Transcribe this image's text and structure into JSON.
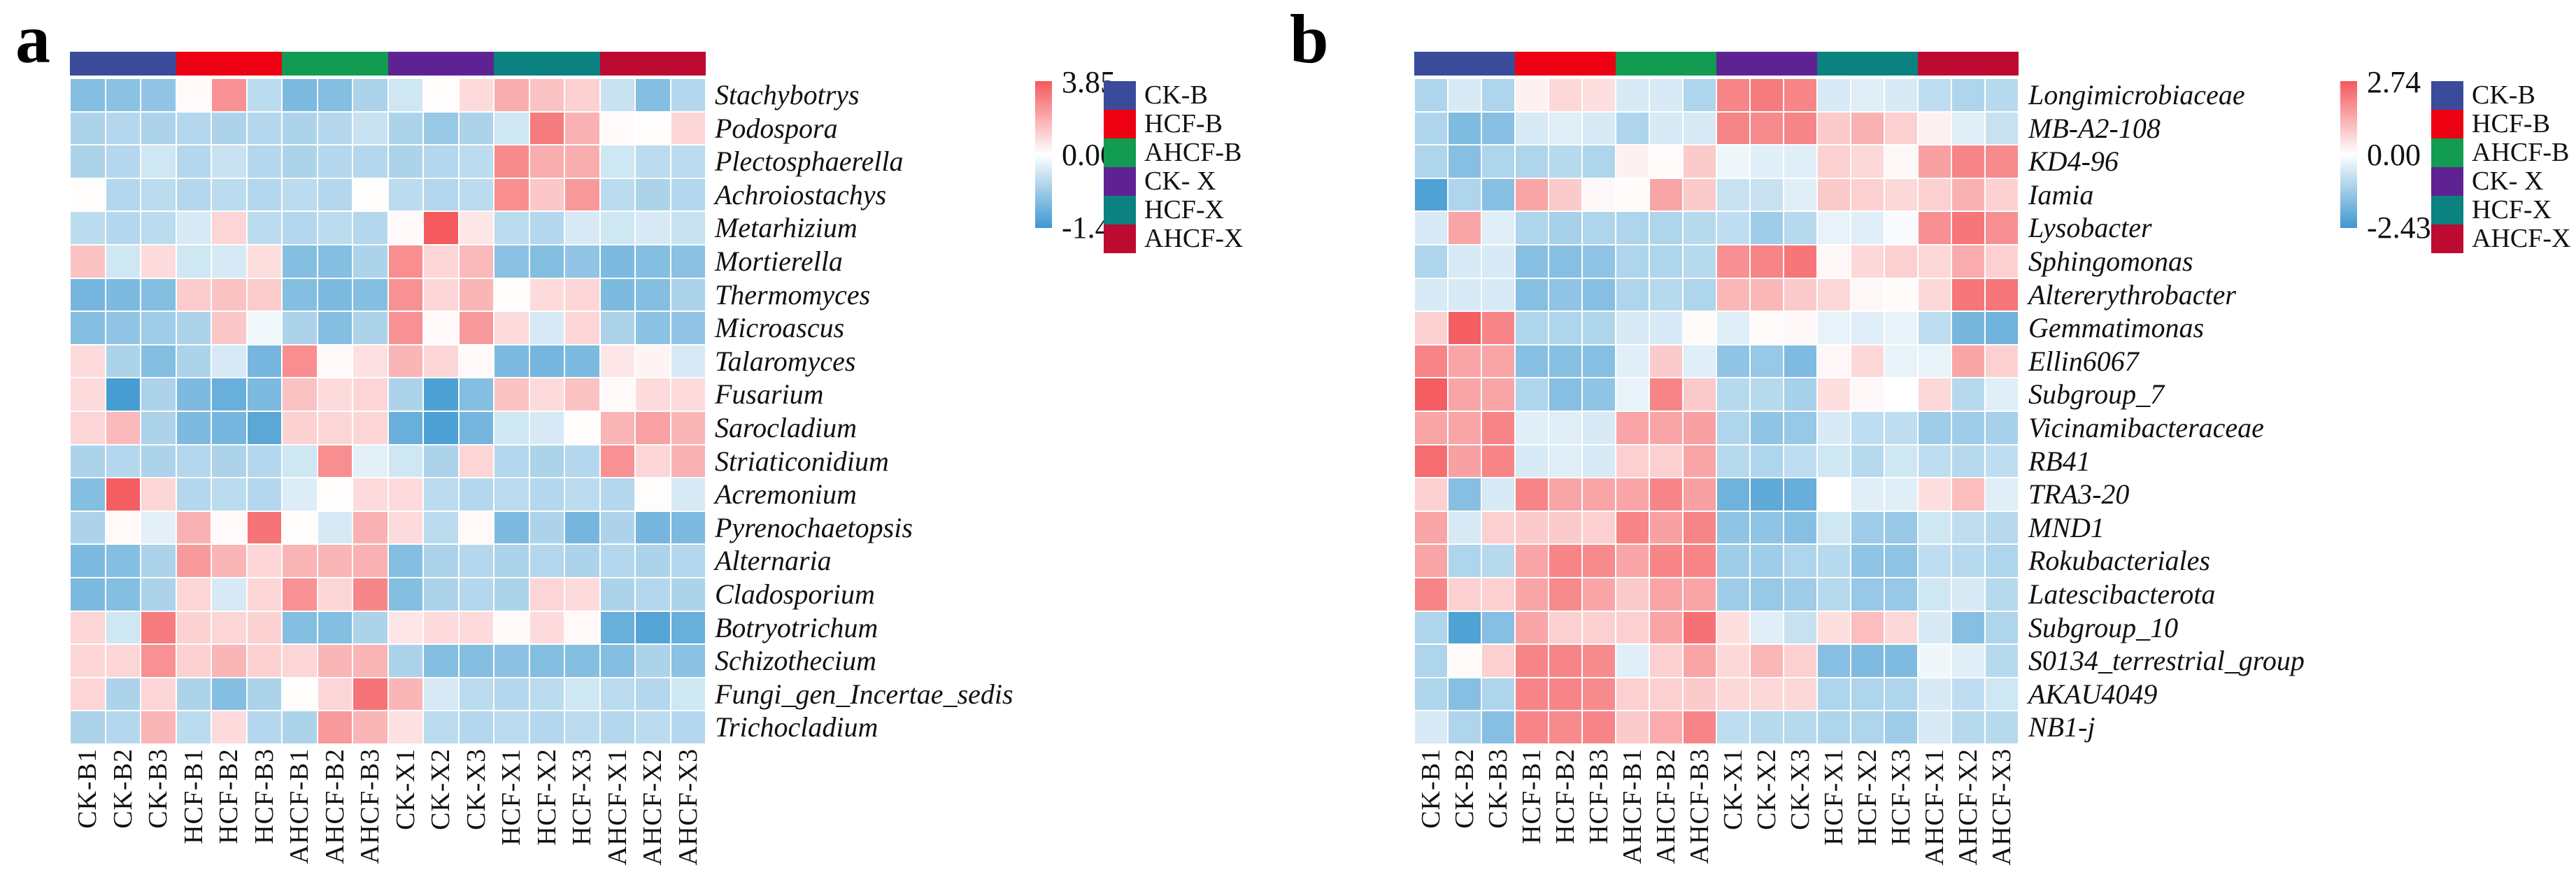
{
  "chart_data": [
    {
      "type": "heatmap",
      "panel_label": "a",
      "columns": [
        "CK-B1",
        "CK-B2",
        "CK-B3",
        "HCF-B1",
        "HCF-B2",
        "HCF-B3",
        "AHCF-B1",
        "AHCF-B2",
        "AHCF-B3",
        "CK-X1",
        "CK-X2",
        "CK-X3",
        "HCF-X1",
        "HCF-X2",
        "HCF-X3",
        "AHCF-X1",
        "AHCF-X2",
        "AHCF-X3"
      ],
      "rows": [
        "Stachybotrys",
        "Podospora",
        "Plectosphaerella",
        "Achroiostachys",
        "Metarhizium",
        "Mortierella",
        "Thermomyces",
        "Microascus",
        "Talaromyces",
        "Fusarium",
        "Sarocladium",
        "Striaticonidium",
        "Acremonium",
        "Pyrenochaetopsis",
        "Alternaria",
        "Cladosporium",
        "Botryotrichum",
        "Schizothecium",
        "Fungi_gen_Incertae_sedis",
        "Trichocladium"
      ],
      "values": [
        [
          -0.9,
          -0.85,
          -0.8,
          0.05,
          2.2,
          -0.5,
          -0.95,
          -0.9,
          -0.6,
          -0.35,
          0.02,
          0.5,
          1.5,
          1.0,
          0.7,
          -0.4,
          -0.9,
          -0.55
        ],
        [
          -0.6,
          -0.55,
          -0.6,
          -0.55,
          -0.6,
          -0.55,
          -0.6,
          -0.55,
          -0.4,
          -0.6,
          -0.75,
          -0.6,
          -0.35,
          2.8,
          1.4,
          0.05,
          0.02,
          0.6
        ],
        [
          -0.6,
          -0.55,
          -0.35,
          -0.55,
          -0.4,
          -0.55,
          -0.6,
          -0.55,
          -0.55,
          -0.6,
          -0.55,
          -0.5,
          2.4,
          1.5,
          1.5,
          -0.35,
          -0.5,
          -0.5
        ],
        [
          0.02,
          -0.55,
          -0.5,
          -0.55,
          -0.5,
          -0.55,
          -0.5,
          -0.55,
          0.02,
          -0.5,
          -0.55,
          -0.5,
          2.3,
          0.9,
          2.0,
          -0.5,
          -0.6,
          -0.55
        ],
        [
          -0.5,
          -0.55,
          -0.5,
          -0.3,
          0.6,
          -0.5,
          -0.55,
          -0.5,
          -0.55,
          0.05,
          3.8,
          0.3,
          -0.5,
          -0.55,
          -0.3,
          -0.35,
          -0.3,
          -0.4
        ],
        [
          1.0,
          -0.35,
          0.5,
          -0.35,
          -0.3,
          0.45,
          -0.9,
          -0.9,
          -0.6,
          2.3,
          0.6,
          1.2,
          -0.85,
          -0.9,
          -0.8,
          -0.95,
          -0.9,
          -0.85
        ],
        [
          -1.0,
          -0.95,
          -0.9,
          0.8,
          1.0,
          0.8,
          -0.9,
          -0.95,
          -0.9,
          2.2,
          0.6,
          1.3,
          0.02,
          0.5,
          0.6,
          -0.95,
          -0.9,
          -0.6
        ],
        [
          -0.9,
          -0.8,
          -0.7,
          -0.6,
          0.9,
          -0.1,
          -0.6,
          -0.9,
          -0.6,
          2.2,
          0.05,
          2.0,
          0.5,
          -0.3,
          0.6,
          -0.6,
          -0.85,
          -0.8
        ],
        [
          0.5,
          -0.6,
          -0.9,
          -0.6,
          -0.3,
          -1.0,
          2.3,
          0.05,
          0.4,
          1.3,
          0.6,
          0.05,
          -0.95,
          -1.0,
          -0.95,
          0.3,
          0.1,
          -0.3
        ],
        [
          0.5,
          -1.35,
          -0.6,
          -0.95,
          -1.1,
          -0.95,
          1.0,
          0.5,
          0.6,
          -0.6,
          -1.3,
          -0.9,
          1.0,
          0.5,
          1.0,
          0.05,
          0.5,
          0.5
        ],
        [
          0.6,
          1.2,
          -0.6,
          -0.95,
          -1.0,
          -1.2,
          0.7,
          0.6,
          0.6,
          -1.1,
          -1.3,
          -1.0,
          -0.35,
          -0.3,
          0.02,
          1.3,
          1.8,
          1.3
        ],
        [
          -0.6,
          -0.55,
          -0.6,
          -0.55,
          -0.6,
          -0.55,
          -0.35,
          2.3,
          -0.2,
          -0.35,
          -0.6,
          0.6,
          -0.55,
          -0.6,
          -0.55,
          2.2,
          0.6,
          1.4
        ],
        [
          -0.9,
          3.7,
          0.6,
          -0.55,
          -0.5,
          -0.55,
          -0.25,
          0.02,
          0.5,
          0.5,
          -0.5,
          -0.55,
          -0.5,
          -0.55,
          -0.5,
          -0.55,
          0.02,
          -0.3
        ],
        [
          -0.6,
          0.05,
          -0.2,
          1.4,
          0.05,
          3.0,
          0.02,
          -0.3,
          1.4,
          0.5,
          -0.5,
          0.05,
          -0.95,
          -0.6,
          -1.0,
          -0.6,
          -1.0,
          -0.95
        ],
        [
          -0.95,
          -0.9,
          -0.6,
          2.0,
          1.3,
          0.6,
          1.3,
          1.3,
          1.4,
          -0.9,
          -0.6,
          -0.55,
          -0.6,
          -0.55,
          -0.6,
          -0.55,
          -0.6,
          -0.55
        ],
        [
          -0.95,
          -0.9,
          -0.6,
          0.6,
          -0.3,
          0.6,
          2.2,
          0.6,
          2.5,
          -0.9,
          -0.6,
          -0.55,
          -0.6,
          0.6,
          0.5,
          -0.6,
          -0.55,
          -0.6
        ],
        [
          0.6,
          -0.35,
          2.8,
          0.7,
          0.6,
          0.7,
          -0.9,
          -0.9,
          -0.6,
          0.3,
          0.5,
          0.5,
          0.05,
          0.5,
          0.05,
          -1.1,
          -1.25,
          -1.1
        ],
        [
          0.6,
          0.6,
          2.2,
          0.7,
          1.3,
          0.7,
          0.6,
          1.3,
          1.3,
          -0.6,
          -0.9,
          -0.9,
          -0.85,
          -0.9,
          -0.9,
          -0.9,
          -0.6,
          -0.85
        ],
        [
          0.6,
          -0.6,
          0.6,
          -0.6,
          -0.9,
          -0.6,
          0.02,
          0.6,
          3.0,
          1.3,
          -0.3,
          -0.5,
          -0.55,
          -0.5,
          -0.35,
          -0.5,
          -0.55,
          -0.35
        ],
        [
          -0.6,
          -0.55,
          1.3,
          -0.5,
          0.5,
          -0.55,
          -0.6,
          2.0,
          1.3,
          0.4,
          -0.5,
          -0.55,
          -0.5,
          -0.55,
          -0.5,
          -0.55,
          -0.5,
          -0.55
        ]
      ],
      "value_range": {
        "max": 3.85,
        "min": -1.42
      },
      "colorbar": {
        "ticks": [
          "3.85",
          "0.00",
          "-1.42"
        ]
      },
      "column_groups": [
        {
          "label": "CK-B",
          "color": "#3B4B9B",
          "span": 3
        },
        {
          "label": "HCF-B",
          "color": "#EC0011",
          "span": 3
        },
        {
          "label": "AHCF-B",
          "color": "#119C52",
          "span": 3
        },
        {
          "label": "CK- X",
          "color": "#5F2293",
          "span": 3
        },
        {
          "label": "HCF-X",
          "color": "#0B8180",
          "span": 3
        },
        {
          "label": "AHCF-X",
          "color": "#BD0A30",
          "span": 3
        }
      ],
      "heat_palette": {
        "positive": "#F4585C",
        "zero": "#FFFFFF",
        "negative": "#3D98D0"
      }
    },
    {
      "type": "heatmap",
      "panel_label": "b",
      "columns": [
        "CK-B1",
        "CK-B2",
        "CK-B3",
        "HCF-B1",
        "HCF-B2",
        "HCF-B3",
        "AHCF-B1",
        "AHCF-B2",
        "AHCF-B3",
        "CK-X1",
        "CK-X2",
        "CK-X3",
        "HCF-X1",
        "HCF-X2",
        "HCF-X3",
        "AHCF-X1",
        "AHCF-X2",
        "AHCF-X3"
      ],
      "rows": [
        "Longimicrobiaceae",
        "MB-A2-108",
        "KD4-96",
        "Iamia",
        "Lysobacter",
        "Sphingomonas",
        "Altererythrobacter",
        "Gemmatimonas",
        "Ellin6067",
        "Subgroup_7",
        "Vicinamibacteraceae",
        "RB41",
        "TRA3-20",
        "MND1",
        "Rokubacteriales",
        "Latescibacterota",
        "Subgroup_10",
        "S0134_terrestrial_group",
        "AKAU4049",
        "NB1-j"
      ],
      "values": [
        [
          -1.0,
          -0.5,
          -1.0,
          0.1,
          0.4,
          0.3,
          -0.5,
          -0.5,
          -1.0,
          1.8,
          2.0,
          1.8,
          -0.5,
          -0.4,
          -0.5,
          -0.8,
          -1.0,
          -0.9
        ],
        [
          -1.0,
          -1.6,
          -1.5,
          -0.5,
          -0.4,
          -0.5,
          -1.0,
          -0.5,
          -0.5,
          1.8,
          1.7,
          1.8,
          0.6,
          1.0,
          0.5,
          0.1,
          -0.4,
          -0.7
        ],
        [
          -1.0,
          -1.5,
          -1.0,
          -1.0,
          -0.9,
          -1.0,
          0.1,
          0.02,
          0.6,
          -0.2,
          -0.4,
          -0.4,
          0.5,
          0.4,
          0.05,
          1.3,
          1.8,
          1.7
        ],
        [
          -2.2,
          -1.0,
          -1.5,
          1.2,
          0.6,
          0.05,
          0.02,
          1.2,
          0.6,
          -0.7,
          -0.7,
          -0.4,
          0.6,
          0.5,
          0.4,
          0.5,
          1.0,
          0.5
        ],
        [
          -0.5,
          1.2,
          -0.4,
          -1.0,
          -1.1,
          -1.0,
          -1.0,
          -1.0,
          -0.9,
          -0.8,
          -1.2,
          -0.9,
          -0.3,
          -0.4,
          -0.1,
          1.6,
          2.1,
          1.6
        ],
        [
          -1.0,
          -0.5,
          -0.5,
          -1.5,
          -1.5,
          -1.4,
          -1.0,
          -1.0,
          -0.9,
          1.6,
          1.8,
          2.1,
          0.05,
          0.4,
          0.5,
          0.4,
          1.1,
          0.5
        ],
        [
          -0.5,
          -0.5,
          -0.5,
          -1.5,
          -1.4,
          -1.5,
          -1.0,
          -0.9,
          -1.0,
          0.9,
          0.9,
          0.6,
          0.4,
          0.05,
          0.02,
          0.4,
          2.1,
          2.1
        ],
        [
          0.5,
          2.6,
          1.8,
          -1.0,
          -1.0,
          -1.0,
          -0.5,
          -0.5,
          0.02,
          -0.4,
          0.02,
          0.05,
          -0.3,
          -0.4,
          -0.3,
          -0.8,
          -1.7,
          -1.8
        ],
        [
          1.8,
          1.2,
          1.2,
          -1.5,
          -1.5,
          -1.5,
          -0.4,
          0.6,
          -0.4,
          -1.4,
          -1.3,
          -1.6,
          0.05,
          0.4,
          -0.3,
          -0.3,
          1.2,
          0.5
        ],
        [
          2.6,
          1.2,
          1.2,
          -1.0,
          -1.5,
          -1.4,
          -0.3,
          1.8,
          0.6,
          -0.9,
          -0.9,
          -1.1,
          0.3,
          0.05,
          0.0,
          0.4,
          -0.9,
          -0.4
        ],
        [
          1.2,
          1.2,
          1.8,
          -0.4,
          -0.4,
          -0.5,
          1.2,
          1.2,
          1.3,
          -1.0,
          -1.4,
          -1.3,
          -0.5,
          -0.8,
          -0.8,
          -1.2,
          -1.2,
          -1.1
        ],
        [
          2.3,
          1.3,
          1.8,
          -0.5,
          -0.4,
          -0.5,
          0.5,
          0.5,
          1.2,
          -0.9,
          -1.0,
          -0.8,
          -0.6,
          -0.9,
          -0.6,
          -0.8,
          -0.9,
          -0.8
        ],
        [
          0.5,
          -1.5,
          -0.5,
          1.8,
          1.2,
          1.2,
          1.2,
          1.8,
          1.3,
          -1.8,
          -2.0,
          -1.9,
          0.0,
          -0.4,
          -0.4,
          0.3,
          0.8,
          -0.4
        ],
        [
          1.2,
          -0.5,
          0.5,
          0.6,
          0.6,
          0.5,
          1.8,
          1.3,
          1.8,
          -1.4,
          -1.4,
          -1.5,
          -0.6,
          -1.2,
          -1.3,
          -0.6,
          -0.8,
          -0.9
        ],
        [
          1.2,
          -1.0,
          -0.9,
          1.2,
          1.8,
          1.7,
          1.2,
          1.8,
          1.8,
          -1.2,
          -1.2,
          -1.0,
          -0.9,
          -1.4,
          -1.4,
          -0.8,
          -0.9,
          -1.0
        ],
        [
          1.8,
          0.5,
          0.5,
          1.2,
          1.7,
          1.2,
          0.6,
          1.2,
          1.2,
          -1.2,
          -1.3,
          -1.2,
          -0.9,
          -1.3,
          -1.3,
          -0.6,
          -0.5,
          -0.9
        ],
        [
          -1.0,
          -2.2,
          -1.5,
          1.2,
          0.5,
          0.5,
          0.5,
          1.2,
          2.2,
          0.3,
          -0.4,
          -0.7,
          0.3,
          0.8,
          0.4,
          -0.5,
          -1.5,
          -1.0
        ],
        [
          -1.0,
          0.02,
          0.5,
          1.8,
          1.8,
          1.7,
          -0.4,
          0.5,
          1.2,
          0.4,
          0.9,
          0.5,
          -1.5,
          -1.6,
          -1.6,
          -0.2,
          -0.4,
          -0.9
        ],
        [
          -1.0,
          -1.5,
          -1.0,
          1.8,
          1.8,
          1.7,
          0.5,
          0.5,
          0.6,
          0.4,
          0.4,
          0.4,
          -1.0,
          -1.0,
          -1.0,
          -0.5,
          -0.8,
          -0.6
        ],
        [
          -0.5,
          -1.0,
          -1.5,
          1.8,
          1.7,
          1.8,
          0.6,
          1.1,
          1.8,
          -0.8,
          -0.9,
          -0.9,
          -1.0,
          -1.0,
          -1.2,
          -0.5,
          -0.9,
          -0.9
        ]
      ],
      "value_range": {
        "max": 2.74,
        "min": -2.43
      },
      "colorbar": {
        "ticks": [
          "2.74",
          "0.00",
          "-2.43"
        ]
      },
      "column_groups": [
        {
          "label": "CK-B",
          "color": "#3B4B9B",
          "span": 3
        },
        {
          "label": "HCF-B",
          "color": "#EC0011",
          "span": 3
        },
        {
          "label": "AHCF-B",
          "color": "#119C52",
          "span": 3
        },
        {
          "label": "CK- X",
          "color": "#5F2293",
          "span": 3
        },
        {
          "label": "HCF-X",
          "color": "#0B8180",
          "span": 3
        },
        {
          "label": "AHCF-X",
          "color": "#BD0A30",
          "span": 3
        }
      ],
      "heat_palette": {
        "positive": "#F4585C",
        "zero": "#FFFFFF",
        "negative": "#3D98D0"
      }
    }
  ]
}
